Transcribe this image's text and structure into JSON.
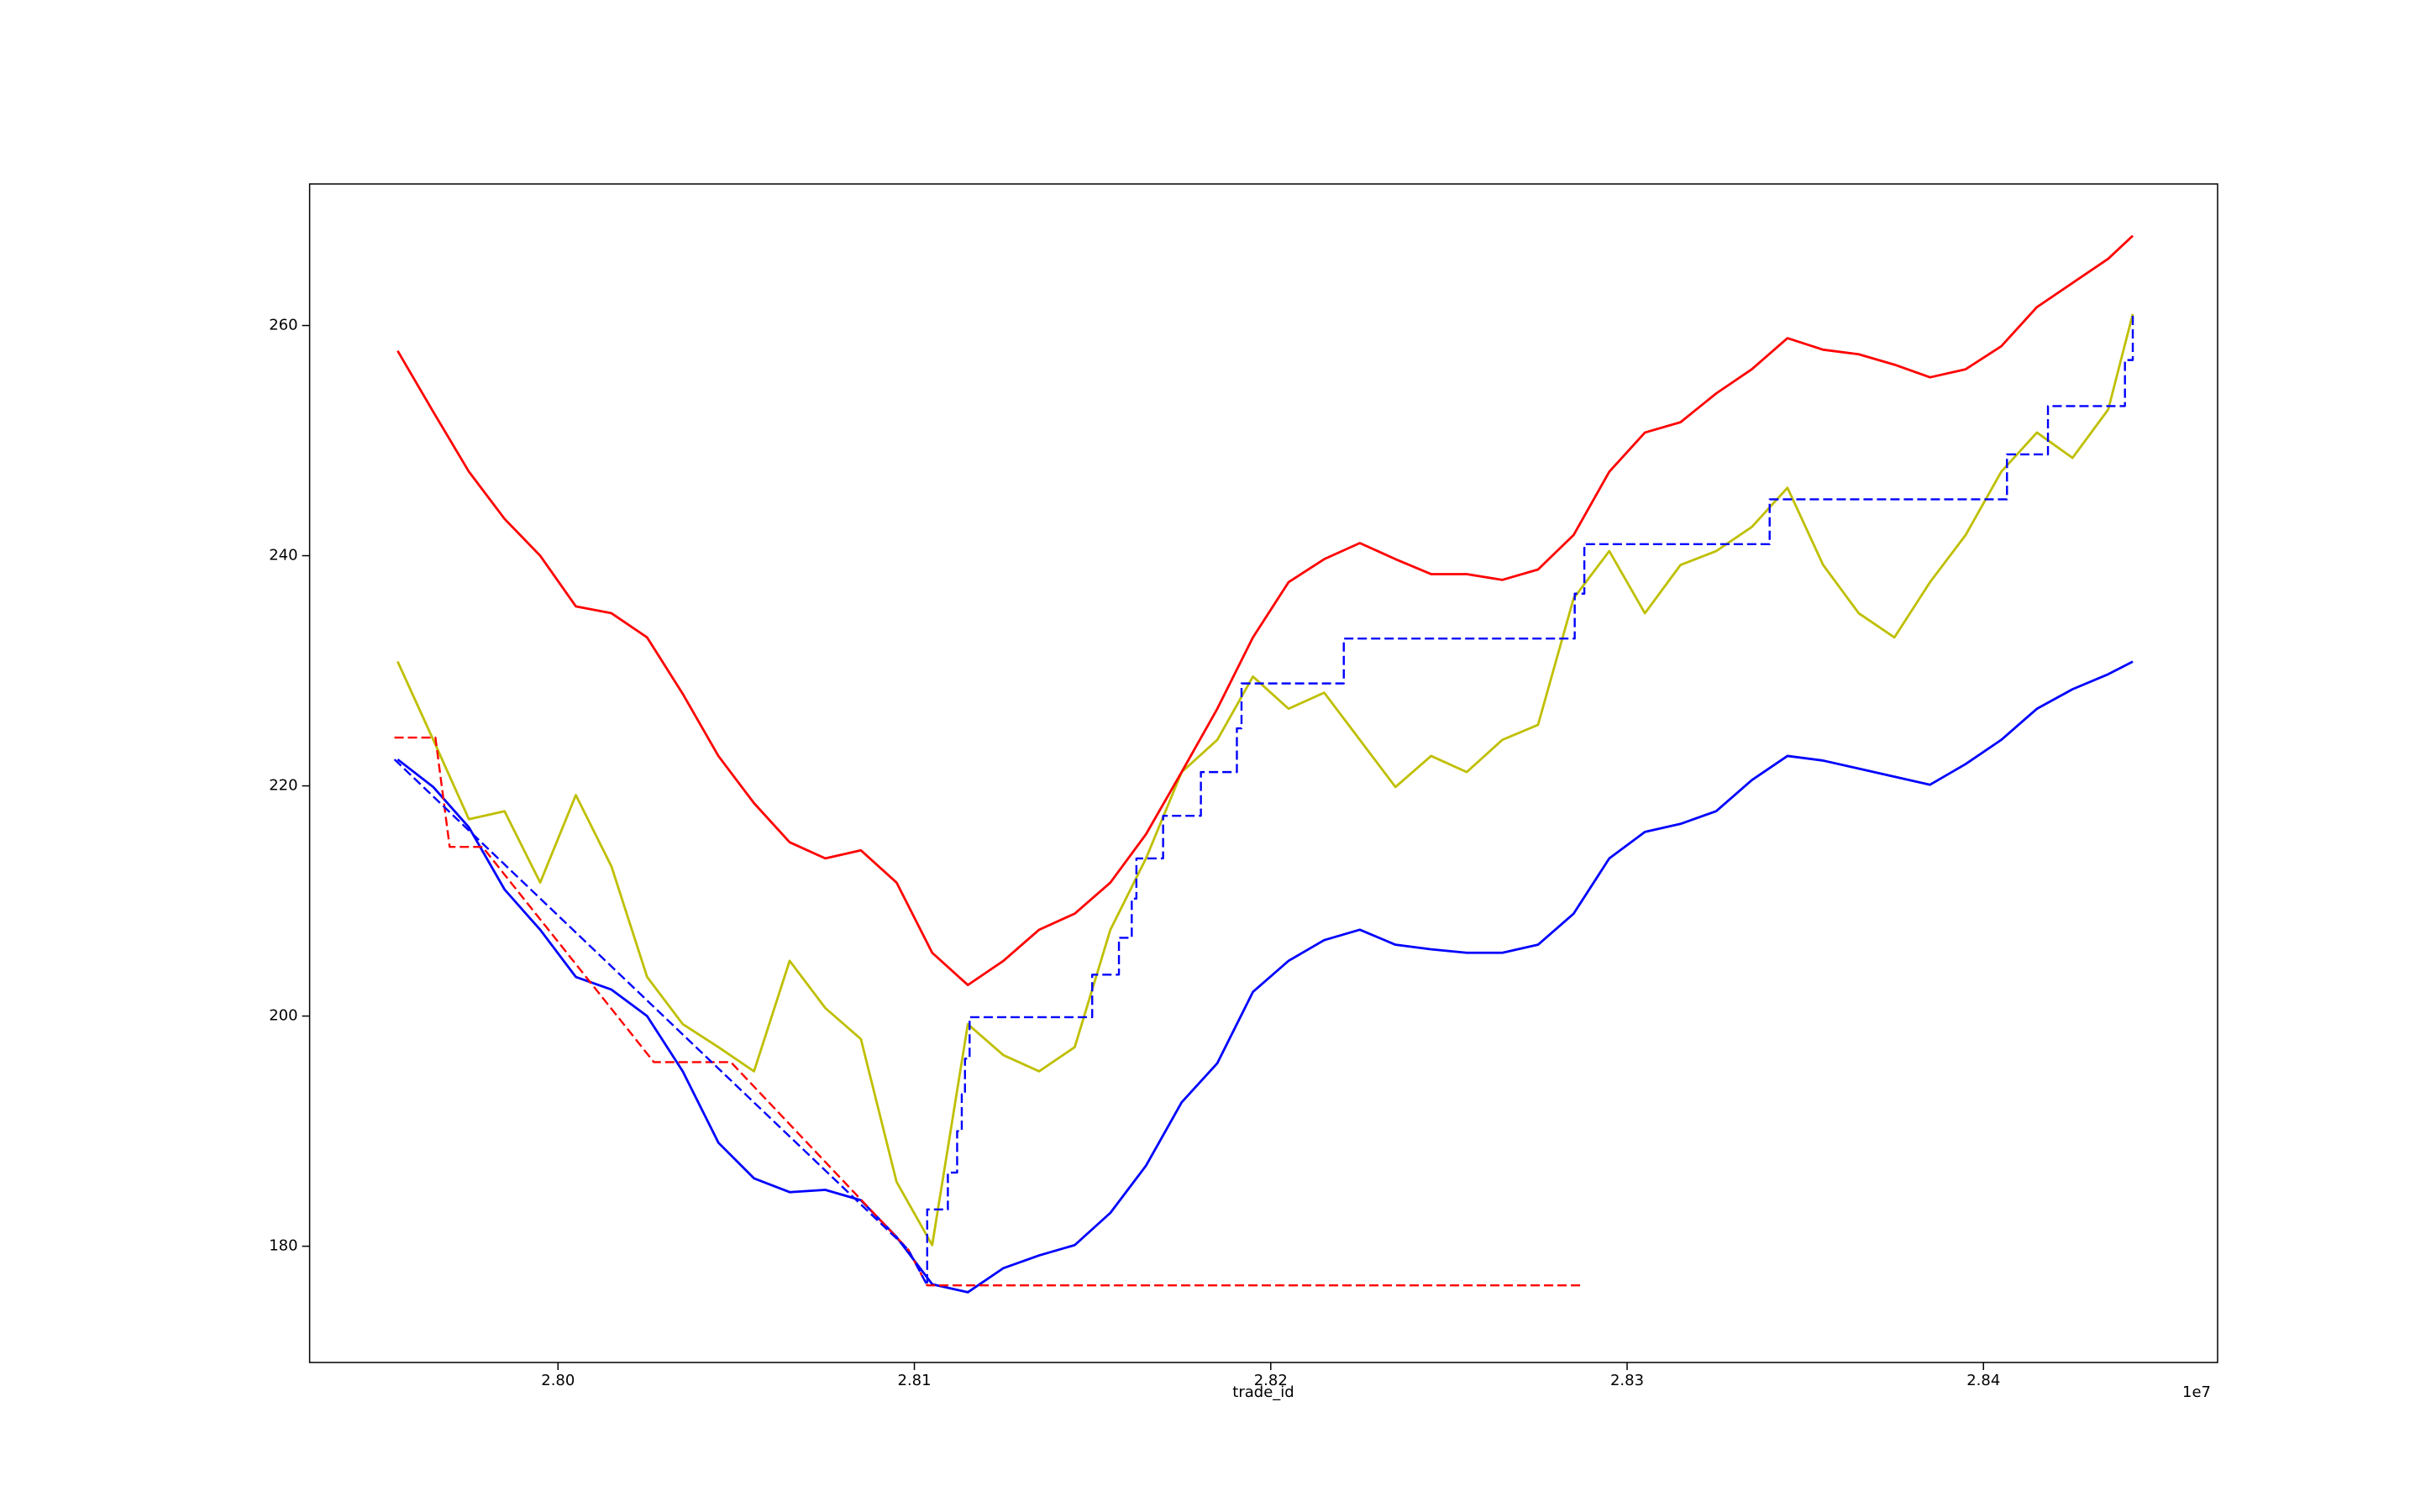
{
  "chart_data": {
    "type": "line",
    "xlabel": "trade_id",
    "x_offset_label": "1e7",
    "xlim": [
      27930300,
      28465700
    ],
    "xticks": [
      {
        "value": 28000000,
        "label": "2.80"
      },
      {
        "value": 28100000,
        "label": "2.81"
      },
      {
        "value": 28200000,
        "label": "2.82"
      },
      {
        "value": 28300000,
        "label": "2.83"
      },
      {
        "value": 28400000,
        "label": "2.84"
      }
    ],
    "ylim": [
      169.9,
      272.3
    ],
    "yticks": [
      180,
      200,
      220,
      240,
      260
    ],
    "x": [
      27955000,
      27965000,
      27975000,
      27985000,
      27995000,
      28005000,
      28015000,
      28025000,
      28035000,
      28045000,
      28055000,
      28065000,
      28075000,
      28085000,
      28095000,
      28105000,
      28115000,
      28125000,
      28135000,
      28145000,
      28155000,
      28165000,
      28175000,
      28185000,
      28195000,
      28205000,
      28215000,
      28225000,
      28235000,
      28245000,
      28255000,
      28265000,
      28275000,
      28285000,
      28295000,
      28305000,
      28315000,
      28325000,
      28335000,
      28345000,
      28355000,
      28365000,
      28375000,
      28385000,
      28395000,
      28405000,
      28415000,
      28425000,
      28435000,
      28441900
    ],
    "series": [
      {
        "color": "#bfbf00",
        "width": 2.8,
        "values": [
          230.8,
          224,
          217.1,
          217.8,
          211.6,
          219.2,
          213,
          203.4,
          199.3,
          197.3,
          195.2,
          204.8,
          200.7,
          198,
          185.6,
          180.1,
          199.3,
          196.6,
          195.2,
          197.3,
          207.5,
          213.7,
          221.2,
          224,
          229.5,
          226.7,
          228.1,
          224,
          219.9,
          222.6,
          221.2,
          224,
          225.3,
          236.3,
          240.4,
          235,
          239.2,
          240.4,
          242.5,
          245.9,
          239.2,
          235,
          232.9,
          237.7,
          241.8,
          247.3,
          250.7,
          248.5,
          252.7,
          261
        ]
      },
      {
        "color": "#ff0000",
        "width": 2.8,
        "values": [
          257.8,
          252.5,
          247.3,
          243.2,
          240,
          235.6,
          235,
          232.9,
          228,
          222.6,
          218.5,
          215.1,
          213.7,
          214.4,
          211.6,
          205.5,
          202.7,
          204.8,
          207.5,
          208.9,
          211.6,
          215.8,
          221.2,
          226.7,
          232.9,
          237.7,
          239.7,
          241.1,
          239.7,
          238.4,
          238.4,
          237.9,
          238.8,
          241.8,
          247.3,
          250.7,
          251.6,
          254.1,
          256.2,
          258.9,
          257.9,
          257.5,
          256.6,
          255.5,
          256.2,
          258.2,
          261.6,
          263.7,
          265.8,
          267.8
        ]
      },
      {
        "color": "#0000ff",
        "width": 2.8,
        "values": [
          222.3,
          219.9,
          216.4,
          211,
          207.5,
          203.4,
          202.3,
          200,
          195.2,
          189,
          185.9,
          184.7,
          184.9,
          184,
          180.8,
          176.7,
          176,
          178.1,
          179.2,
          180.1,
          182.9,
          187,
          192.5,
          195.9,
          202.1,
          204.8,
          206.6,
          207.5,
          206.2,
          205.8,
          205.5,
          205.5,
          206.2,
          208.9,
          213.7,
          216,
          216.7,
          217.8,
          220.5,
          222.6,
          222.2,
          221.5,
          220.8,
          220.1,
          221.9,
          224,
          226.7,
          228.4,
          229.7,
          230.8
        ]
      },
      {
        "color": "#ff0000",
        "width": 2.4,
        "dashed": true,
        "x": [
          27954100,
          27965600,
          27969600,
          27978800,
          28026900,
          28048500,
          28098300,
          28103600,
          28287500
        ],
        "values": [
          224.2,
          224.2,
          214.7,
          214.7,
          196,
          196,
          179.7,
          176.6,
          176.6
        ]
      },
      {
        "color": "#0000ff",
        "width": 2.4,
        "dashed": true,
        "x": [
          27954100,
          28098300,
          28103600,
          28103600,
          28109400,
          28109400,
          28112000,
          28112000,
          28113300,
          28113300,
          28114200,
          28114200,
          28115500,
          28115500,
          28149900,
          28149900,
          28157400,
          28157400,
          28161000,
          28161000,
          28162300,
          28162300,
          28169800,
          28169800,
          28180400,
          28180400,
          28190500,
          28190500,
          28191800,
          28191800,
          28220500,
          28220500,
          28285300,
          28285300,
          28288000,
          28288000,
          28340000,
          28340000,
          28406600,
          28406600,
          28418100,
          28418100,
          28439700,
          28439700,
          28441900,
          28441900
        ],
        "values": [
          222.3,
          179.7,
          176.6,
          183.2,
          183.2,
          186.4,
          186.4,
          190,
          190,
          193.2,
          193.2,
          196.3,
          196.3,
          199.9,
          199.9,
          203.6,
          203.6,
          206.8,
          206.8,
          210.2,
          210.2,
          213.7,
          213.7,
          217.4,
          217.4,
          221.2,
          221.2,
          225,
          225,
          228.9,
          228.9,
          232.8,
          232.8,
          236.7,
          236.7,
          241,
          241,
          244.9,
          244.9,
          248.8,
          248.8,
          253,
          253,
          257,
          257,
          261
        ]
      }
    ]
  }
}
